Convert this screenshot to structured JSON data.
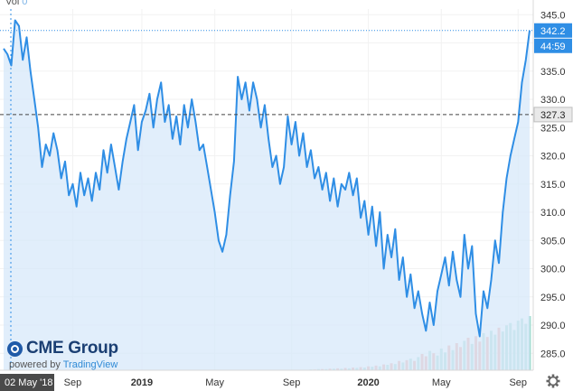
{
  "header": {
    "vol_label": "Vol",
    "vol_value": "0"
  },
  "brand": {
    "name": "CME Group",
    "powered_by": "powered by",
    "platform": "TradingView"
  },
  "date_badge": "02 May '18",
  "gear_icon": "gear-icon",
  "colors": {
    "line": "#2f8ee5",
    "area": "#d7e8fa",
    "up_volume": "#a6dcd2",
    "down_volume": "#f2a9a1",
    "badge_bg": "#2f8ee5",
    "dashed": "#444444",
    "grid": "#f2f2f2"
  },
  "chart_data": {
    "type": "line",
    "x_tick_labels": [
      "Sep",
      "2019",
      "May",
      "Sep",
      "2020",
      "May",
      "Sep"
    ],
    "y_tick_labels": [
      "345.0",
      "340.0",
      "335.0",
      "330.0",
      "325.0",
      "320.0",
      "315.0",
      "310.0",
      "305.0",
      "300.0",
      "295.0",
      "290.0",
      "285.0"
    ],
    "ylim": [
      282,
      346
    ],
    "price_labels": {
      "last": "342.2",
      "countdown": "44:59",
      "reference": "327.3"
    },
    "reference_level": 327.3,
    "series": [
      {
        "values": [
          339,
          338,
          336,
          344,
          343,
          337,
          341,
          335,
          330,
          325,
          318,
          322,
          320,
          324,
          321,
          316,
          319,
          313,
          315,
          311,
          317,
          313,
          316,
          312,
          317,
          314,
          321,
          317,
          322,
          318,
          314,
          319,
          323,
          326,
          329,
          321,
          326,
          328,
          331,
          325,
          330,
          333,
          326,
          329,
          323,
          327,
          322,
          329,
          325,
          330,
          326,
          321,
          322,
          318,
          314,
          310,
          305,
          303,
          306,
          313,
          319,
          334,
          330,
          333,
          328,
          333,
          330,
          325,
          329,
          323,
          318,
          320,
          315,
          318,
          327,
          322,
          326,
          320,
          324,
          318,
          321,
          316,
          318,
          314,
          317,
          312,
          316,
          311,
          315,
          314,
          317,
          313,
          316,
          309,
          312,
          306,
          311,
          304,
          310,
          300,
          306,
          302,
          307,
          298,
          302,
          295,
          299,
          293,
          296,
          292,
          289,
          294,
          290,
          296,
          299,
          302,
          297,
          303,
          298,
          295,
          306,
          300,
          304,
          292,
          288,
          296,
          293,
          298,
          305,
          301,
          310,
          316,
          320,
          323,
          326,
          333,
          337,
          342.2
        ],
        "volume": [
          0,
          0,
          0,
          0,
          0,
          0,
          0,
          0,
          0,
          0,
          0,
          0,
          0,
          0,
          0,
          0,
          0,
          0,
          0,
          0,
          0,
          0,
          0,
          0,
          0,
          0,
          0,
          0,
          0,
          0,
          0,
          0,
          0,
          0,
          0,
          0,
          0,
          0,
          0,
          0,
          0,
          0,
          0,
          0,
          0,
          0,
          0,
          0,
          0,
          0,
          0,
          0,
          0,
          0,
          0,
          0,
          0,
          0,
          0,
          0,
          0,
          0,
          0,
          0,
          0,
          0,
          0,
          0,
          0,
          0,
          0,
          0,
          0,
          0,
          0,
          0,
          0,
          0,
          0,
          0,
          0.2,
          0.2,
          0.3,
          0.3,
          0.3,
          0.4,
          0.4,
          0.5,
          0.4,
          0.6,
          0.5,
          0.7,
          0.6,
          0.8,
          0.7,
          1.0,
          0.9,
          1.2,
          1.0,
          1.5,
          1.4,
          1.8,
          1.6,
          2.4,
          2.0,
          2.6,
          3.0,
          2.4,
          3.4,
          4.2,
          3.6,
          5.0,
          4.4,
          3.8,
          5.6,
          4.6,
          6.4,
          5.2,
          7.0,
          6.0,
          7.6,
          8.4,
          6.8,
          8.8,
          7.4,
          9.6,
          8.6,
          10.2,
          9.2,
          11.0,
          10.0,
          11.6,
          12.2,
          10.4,
          12.8,
          13.4,
          12.0,
          14.0
        ]
      }
    ]
  }
}
